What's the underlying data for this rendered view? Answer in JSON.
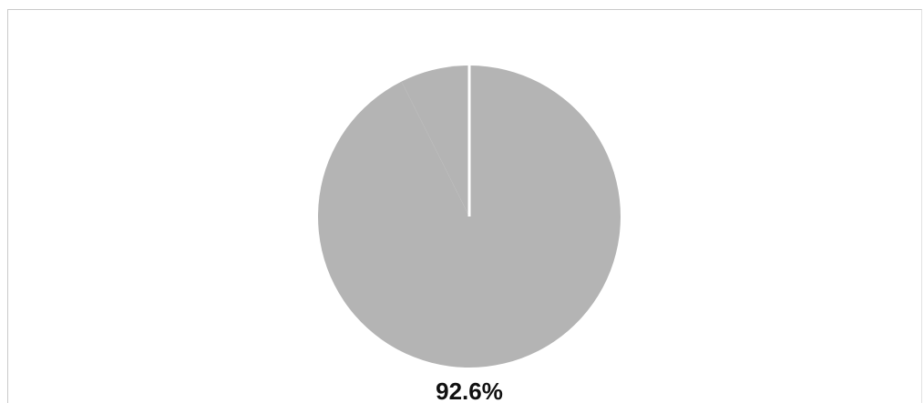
{
  "chart_data": {
    "type": "pie",
    "title": "",
    "slices": [
      {
        "label": "92.6%",
        "value": 92.6,
        "color": "#b4b4b4"
      },
      {
        "label": "",
        "value": 7.4,
        "color": "#b4b4b4"
      }
    ],
    "data_labels": [
      "92.6%"
    ],
    "legend": "none",
    "slice_border_color": "#ffffff"
  }
}
